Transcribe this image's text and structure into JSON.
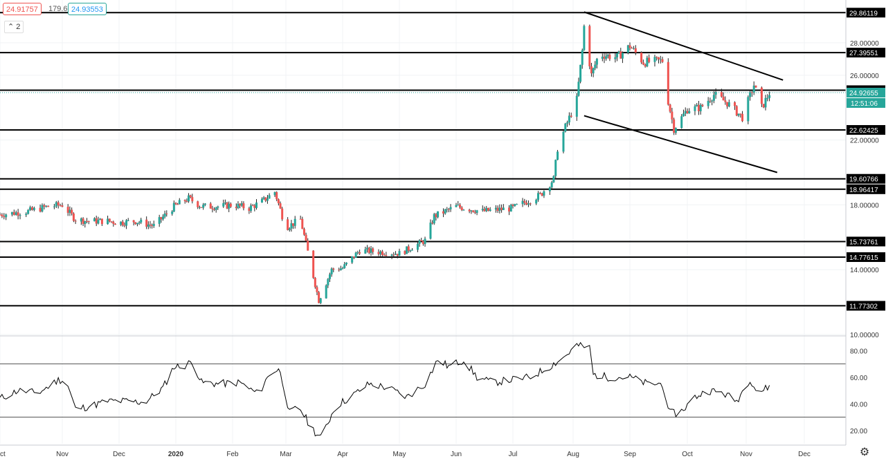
{
  "quote": {
    "bid": "24.91757",
    "spread": "179.6",
    "ask": "24.93553"
  },
  "indicator_toggle": "2",
  "settings_icon": "gear-icon",
  "colors": {
    "up": "#26a69a",
    "down": "#ef5350",
    "last": "#26a69a",
    "line": "#000000"
  },
  "chart_data": [
    {
      "type": "candlestick",
      "instrument_price_format": "5 decimals",
      "y_axis": {
        "ticks": [
          "10.00000",
          "14.00000",
          "18.00000",
          "22.00000",
          "26.00000",
          "28.00000"
        ],
        "ylim": [
          10,
          30.3
        ]
      },
      "x_axis": {
        "ticks": [
          "Nov",
          "Dec",
          "2020",
          "Feb",
          "Mar",
          "Apr",
          "May",
          "Jun",
          "Jul",
          "Aug",
          "Sep",
          "Oct",
          "Nov",
          "Dec"
        ],
        "left_partial_label": "Oct"
      },
      "horizontal_levels": [
        {
          "value": 29.86119,
          "label": "29.86119"
        },
        {
          "value": 27.39551,
          "label": "27.39551"
        },
        {
          "value": 25.07561,
          "label": "25.07561"
        },
        {
          "value": 22.62425,
          "label": "22.62425"
        },
        {
          "value": 19.60766,
          "label": "19.60766"
        },
        {
          "value": 18.96417,
          "label": "18.96417"
        },
        {
          "value": 15.73761,
          "label": "15.73761"
        },
        {
          "value": 14.77615,
          "label": "14.77615"
        },
        {
          "value": 11.77302,
          "label": "11.77302"
        }
      ],
      "last_price": {
        "value": 24.92655,
        "label": "24.92655",
        "countdown": "12:51:06"
      },
      "trend_channel": {
        "upper": [
          [
            "2020-08-07",
            29.9
          ],
          [
            "2020-11-20",
            25.7
          ]
        ],
        "lower": [
          [
            "2020-08-07",
            23.5
          ],
          [
            "2020-11-17",
            20.0
          ]
        ]
      },
      "price_path": [
        [
          "2019-10-01",
          17.4
        ],
        [
          "2019-10-15",
          17.6
        ],
        [
          "2019-10-25",
          17.9
        ],
        [
          "2019-11-01",
          18.0
        ],
        [
          "2019-11-08",
          17.1
        ],
        [
          "2019-11-15",
          17.0
        ],
        [
          "2019-11-25",
          17.0
        ],
        [
          "2019-12-01",
          16.9
        ],
        [
          "2019-12-10",
          17.0
        ],
        [
          "2019-12-20",
          16.7
        ],
        [
          "2019-12-31",
          17.9
        ],
        [
          "2020-01-08",
          18.4
        ],
        [
          "2020-01-15",
          17.9
        ],
        [
          "2020-01-25",
          17.9
        ],
        [
          "2020-02-01",
          18.0
        ],
        [
          "2020-02-10",
          17.8
        ],
        [
          "2020-02-17",
          18.2
        ],
        [
          "2020-02-24",
          18.8
        ],
        [
          "2020-03-01",
          16.6
        ],
        [
          "2020-03-09",
          17.1
        ],
        [
          "2020-03-12",
          15.6
        ],
        [
          "2020-03-19",
          12.1
        ],
        [
          "2020-03-26",
          14.0
        ],
        [
          "2020-04-01",
          14.1
        ],
        [
          "2020-04-10",
          15.2
        ],
        [
          "2020-04-20",
          15.1
        ],
        [
          "2020-05-01",
          15.0
        ],
        [
          "2020-05-15",
          15.8
        ],
        [
          "2020-05-20",
          17.3
        ],
        [
          "2020-06-01",
          17.9
        ],
        [
          "2020-06-15",
          17.6
        ],
        [
          "2020-07-01",
          17.8
        ],
        [
          "2020-07-15",
          18.6
        ],
        [
          "2020-07-22",
          19.6
        ],
        [
          "2020-07-24",
          21.5
        ],
        [
          "2020-07-28",
          22.8
        ],
        [
          "2020-08-03",
          24.5
        ],
        [
          "2020-08-06",
          27.5
        ],
        [
          "2020-08-07",
          29.0
        ],
        [
          "2020-08-11",
          26.0
        ],
        [
          "2020-08-15",
          27.3
        ],
        [
          "2020-08-25",
          27.1
        ],
        [
          "2020-09-01",
          27.8
        ],
        [
          "2020-09-08",
          26.8
        ],
        [
          "2020-09-18",
          26.9
        ],
        [
          "2020-09-21",
          24.4
        ],
        [
          "2020-09-24",
          22.7
        ],
        [
          "2020-10-01",
          23.9
        ],
        [
          "2020-10-08",
          24.0
        ],
        [
          "2020-10-15",
          24.8
        ],
        [
          "2020-10-22",
          24.3
        ],
        [
          "2020-10-30",
          23.4
        ],
        [
          "2020-11-05",
          25.4
        ],
        [
          "2020-11-09",
          24.0
        ],
        [
          "2020-11-13",
          24.9
        ]
      ]
    },
    {
      "type": "line",
      "indicator": "oscillator",
      "y_axis": {
        "ticks": [
          "20.00",
          "40.00",
          "60.00",
          "80.00"
        ],
        "ylim": [
          10,
          90
        ]
      },
      "levels": [
        70,
        30
      ],
      "series": [
        [
          "2019-10-01",
          44
        ],
        [
          "2019-10-10",
          50
        ],
        [
          "2019-10-20",
          48
        ],
        [
          "2019-10-30",
          58
        ],
        [
          "2019-11-03",
          58
        ],
        [
          "2019-11-08",
          36
        ],
        [
          "2019-11-15",
          38
        ],
        [
          "2019-11-25",
          42
        ],
        [
          "2019-12-05",
          42
        ],
        [
          "2019-12-15",
          41
        ],
        [
          "2019-12-25",
          52
        ],
        [
          "2019-12-31",
          68
        ],
        [
          "2020-01-05",
          68
        ],
        [
          "2020-01-10",
          72
        ],
        [
          "2020-01-15",
          56
        ],
        [
          "2020-01-25",
          55
        ],
        [
          "2020-02-05",
          56
        ],
        [
          "2020-02-15",
          47
        ],
        [
          "2020-02-22",
          65
        ],
        [
          "2020-02-27",
          65
        ],
        [
          "2020-03-03",
          33
        ],
        [
          "2020-03-08",
          38
        ],
        [
          "2020-03-15",
          22
        ],
        [
          "2020-03-20",
          14
        ],
        [
          "2020-03-28",
          38
        ],
        [
          "2020-04-05",
          45
        ],
        [
          "2020-04-15",
          55
        ],
        [
          "2020-04-25",
          52
        ],
        [
          "2020-05-05",
          45
        ],
        [
          "2020-05-15",
          55
        ],
        [
          "2020-05-22",
          73
        ],
        [
          "2020-05-28",
          68
        ],
        [
          "2020-06-05",
          73
        ],
        [
          "2020-06-12",
          60
        ],
        [
          "2020-06-20",
          56
        ],
        [
          "2020-06-30",
          58
        ],
        [
          "2020-07-10",
          60
        ],
        [
          "2020-07-20",
          68
        ],
        [
          "2020-07-28",
          76
        ],
        [
          "2020-08-03",
          84
        ],
        [
          "2020-08-10",
          82
        ],
        [
          "2020-08-12",
          62
        ],
        [
          "2020-08-20",
          60
        ],
        [
          "2020-09-01",
          60
        ],
        [
          "2020-09-10",
          55
        ],
        [
          "2020-09-18",
          55
        ],
        [
          "2020-09-22",
          33
        ],
        [
          "2020-09-27",
          33
        ],
        [
          "2020-10-05",
          45
        ],
        [
          "2020-10-12",
          50
        ],
        [
          "2020-10-20",
          48
        ],
        [
          "2020-10-27",
          42
        ],
        [
          "2020-11-03",
          59
        ],
        [
          "2020-11-07",
          48
        ],
        [
          "2020-11-13",
          53
        ]
      ]
    }
  ]
}
